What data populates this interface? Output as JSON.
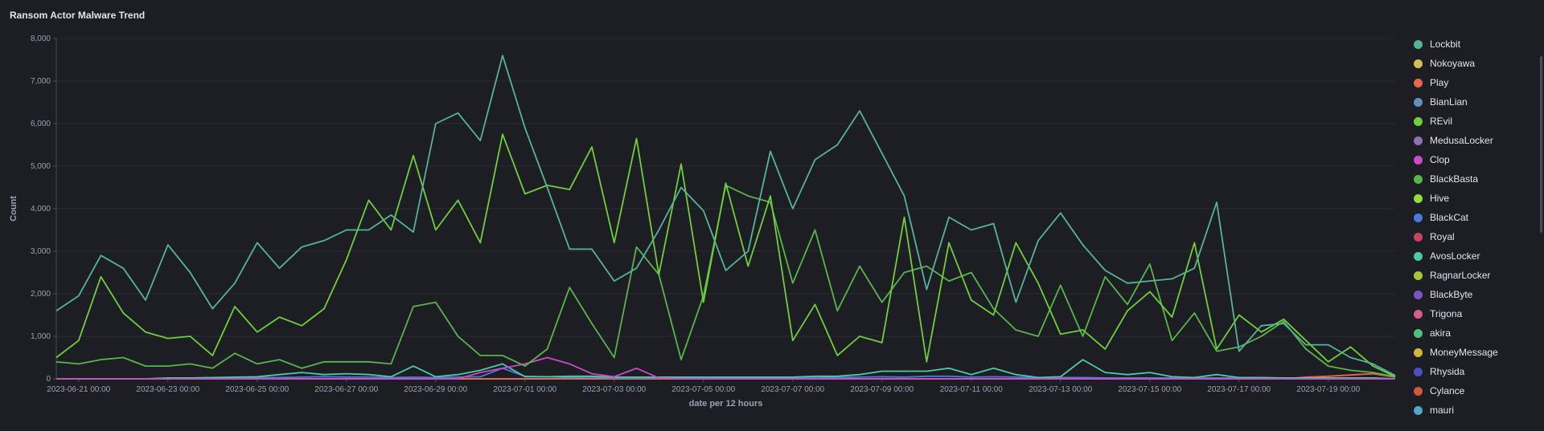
{
  "panel": {
    "title": "Ransom Actor Malware Trend"
  },
  "chart_data": {
    "type": "line",
    "title": "Ransom Actor Malware Trend",
    "xlabel": "date per 12 hours",
    "ylabel": "Count",
    "ylim": [
      0,
      8000
    ],
    "yticks": [
      "0",
      "1,000",
      "2,000",
      "3,000",
      "4,000",
      "5,000",
      "6,000",
      "7,000",
      "8,000"
    ],
    "xtick_labels": [
      "2023-06-21 00:00",
      "2023-06-23 00:00",
      "2023-06-25 00:00",
      "2023-06-27 00:00",
      "2023-06-29 00:00",
      "2023-07-01 00:00",
      "2023-07-03 00:00",
      "2023-07-05 00:00",
      "2023-07-07 00:00",
      "2023-07-09 00:00",
      "2023-07-11 00:00",
      "2023-07-13 00:00",
      "2023-07-15 00:00",
      "2023-07-17 00:00",
      "2023-07-19 00:00"
    ],
    "grid": true,
    "legend_position": "right",
    "series": [
      {
        "name": "Lockbit",
        "color": "#54b399",
        "values": [
          1600,
          1950,
          2900,
          2600,
          1850,
          3150,
          2500,
          1650,
          2250,
          3200,
          2600,
          3100,
          3250,
          3500,
          3500,
          3850,
          3450,
          6000,
          6250,
          5600,
          7600,
          5900,
          4500,
          3050,
          3050,
          2300,
          2600,
          3500,
          4500,
          3950,
          2550,
          3000,
          5350,
          4000,
          5150,
          5500,
          6300,
          5300,
          4300,
          2100,
          3800,
          3500,
          3650,
          1800,
          3250,
          3900,
          3150,
          2550,
          2250,
          2300,
          2350,
          2600,
          4150,
          650,
          1250,
          1300,
          800,
          800,
          500,
          350,
          80
        ]
      },
      {
        "name": "Nokoyawa",
        "color": "#d6bf57",
        "values": [
          0,
          0,
          0,
          0,
          0,
          0,
          0,
          0,
          0,
          0,
          0,
          0,
          0,
          0,
          0,
          0,
          0,
          0,
          0,
          0,
          0,
          0,
          0,
          0,
          0,
          0,
          0,
          0,
          0,
          0,
          0,
          0,
          0,
          0,
          0,
          0,
          0,
          0,
          0,
          0,
          0,
          0,
          0,
          0,
          0,
          0,
          0,
          0,
          0,
          0,
          0,
          0,
          0,
          0,
          0,
          0,
          0,
          0,
          0,
          0,
          0
        ]
      },
      {
        "name": "Play",
        "color": "#e7664c",
        "values": [
          0,
          0,
          0,
          0,
          0,
          0,
          0,
          0,
          0,
          0,
          0,
          0,
          0,
          0,
          0,
          0,
          0,
          0,
          0,
          0,
          0,
          0,
          0,
          0,
          0,
          0,
          0,
          0,
          0,
          0,
          0,
          0,
          0,
          0,
          0,
          0,
          0,
          0,
          0,
          0,
          0,
          0,
          0,
          0,
          0,
          0,
          0,
          0,
          0,
          0,
          0,
          0,
          0,
          0,
          0,
          0,
          40,
          60,
          90,
          120,
          40
        ]
      },
      {
        "name": "BianLian",
        "color": "#6092c0",
        "values": [
          0,
          0,
          0,
          0,
          0,
          0,
          0,
          0,
          0,
          0,
          0,
          0,
          0,
          0,
          0,
          0,
          0,
          0,
          0,
          0,
          0,
          0,
          0,
          0,
          0,
          0,
          0,
          0,
          0,
          0,
          0,
          0,
          0,
          0,
          0,
          0,
          0,
          0,
          0,
          0,
          0,
          0,
          0,
          0,
          0,
          0,
          0,
          0,
          0,
          0,
          0,
          0,
          0,
          0,
          0,
          0,
          0,
          0,
          0,
          0,
          0
        ]
      },
      {
        "name": "REvil",
        "color": "#6fcf3a",
        "values": [
          500,
          900,
          2400,
          1550,
          1100,
          950,
          1000,
          550,
          1700,
          1100,
          1450,
          1250,
          1650,
          2800,
          4200,
          3500,
          5250,
          3500,
          4200,
          3200,
          5750,
          4350,
          4550,
          4450,
          5450,
          3200,
          5650,
          2450,
          5050,
          1800,
          4600,
          2650,
          4300,
          900,
          1750,
          550,
          1000,
          850,
          3800,
          400,
          3200,
          1850,
          1500,
          3200,
          2250,
          1050,
          1150,
          700,
          1600,
          2050,
          1450,
          3200,
          700,
          1500,
          1100,
          1400,
          900,
          400,
          750,
          300,
          50
        ]
      },
      {
        "name": "MedusaLocker",
        "color": "#9170b8",
        "values": [
          0,
          0,
          0,
          0,
          0,
          0,
          0,
          0,
          0,
          0,
          0,
          0,
          0,
          0,
          0,
          0,
          0,
          0,
          0,
          0,
          0,
          0,
          0,
          0,
          0,
          0,
          0,
          0,
          0,
          0,
          0,
          0,
          0,
          0,
          0,
          0,
          0,
          0,
          0,
          0,
          0,
          0,
          0,
          0,
          0,
          0,
          0,
          0,
          0,
          0,
          0,
          0,
          0,
          0,
          0,
          0,
          0,
          0,
          0,
          0,
          0
        ]
      },
      {
        "name": "Clop",
        "color": "#ca4bc7",
        "values": [
          0,
          0,
          0,
          0,
          0,
          0,
          0,
          0,
          0,
          0,
          0,
          0,
          0,
          0,
          0,
          0,
          0,
          0,
          0,
          150,
          250,
          350,
          500,
          350,
          120,
          50,
          250,
          20,
          0,
          0,
          0,
          0,
          0,
          0,
          0,
          0,
          0,
          0,
          0,
          0,
          0,
          0,
          0,
          0,
          0,
          0,
          0,
          0,
          0,
          0,
          0,
          0,
          0,
          0,
          0,
          0,
          0,
          0,
          0,
          0,
          0
        ]
      },
      {
        "name": "BlackBasta",
        "color": "#58b54a",
        "values": [
          400,
          350,
          450,
          500,
          300,
          300,
          350,
          250,
          600,
          350,
          450,
          250,
          400,
          400,
          400,
          350,
          1700,
          1800,
          1000,
          550,
          550,
          300,
          700,
          2150,
          1300,
          500,
          3100,
          2450,
          450,
          1950,
          4550,
          4300,
          4150,
          2250,
          3500,
          1600,
          2650,
          1800,
          2500,
          2650,
          2300,
          2500,
          1650,
          1150,
          1000,
          2200,
          1000,
          2400,
          1750,
          2700,
          900,
          1550,
          650,
          750,
          1000,
          1350,
          700,
          300,
          200,
          150,
          50
        ]
      },
      {
        "name": "Hive",
        "color": "#8ddf3a",
        "values": [
          0,
          0,
          0,
          0,
          0,
          0,
          0,
          0,
          0,
          0,
          0,
          0,
          0,
          0,
          0,
          0,
          0,
          0,
          0,
          0,
          0,
          0,
          0,
          0,
          0,
          0,
          0,
          0,
          0,
          0,
          0,
          0,
          0,
          0,
          0,
          0,
          0,
          0,
          0,
          0,
          0,
          0,
          0,
          0,
          0,
          0,
          0,
          0,
          0,
          0,
          0,
          0,
          0,
          0,
          0,
          0,
          0,
          0,
          0,
          0,
          0
        ]
      },
      {
        "name": "BlackCat",
        "color": "#4a7adb",
        "values": [
          0,
          0,
          0,
          0,
          0,
          10,
          20,
          10,
          20,
          30,
          30,
          40,
          50,
          40,
          40,
          30,
          40,
          30,
          40,
          50,
          250,
          60,
          50,
          30,
          40,
          20,
          20,
          20,
          20,
          20,
          20,
          20,
          20,
          20,
          40,
          30,
          40,
          50,
          40,
          60,
          60,
          40,
          50,
          40,
          30,
          30,
          30,
          20,
          20,
          20,
          20,
          20,
          20,
          20,
          20,
          20,
          10,
          10,
          10,
          10,
          0
        ]
      },
      {
        "name": "Royal",
        "color": "#c9455e",
        "values": [
          0,
          0,
          0,
          0,
          0,
          0,
          0,
          0,
          0,
          0,
          0,
          0,
          0,
          0,
          0,
          0,
          0,
          0,
          0,
          0,
          0,
          0,
          0,
          0,
          0,
          0,
          0,
          0,
          0,
          0,
          0,
          0,
          0,
          0,
          0,
          0,
          0,
          0,
          0,
          0,
          0,
          0,
          0,
          0,
          0,
          0,
          0,
          0,
          0,
          0,
          0,
          0,
          0,
          0,
          0,
          0,
          0,
          0,
          0,
          0,
          0
        ]
      },
      {
        "name": "AvosLocker",
        "color": "#4cc9a6",
        "values": [
          0,
          0,
          0,
          0,
          0,
          20,
          20,
          30,
          40,
          50,
          100,
          150,
          100,
          120,
          100,
          50,
          300,
          50,
          100,
          200,
          350,
          50,
          50,
          60,
          60,
          40,
          40,
          40,
          40,
          40,
          40,
          40,
          40,
          40,
          60,
          60,
          100,
          180,
          180,
          180,
          250,
          100,
          250,
          100,
          30,
          50,
          450,
          150,
          100,
          150,
          50,
          30,
          100,
          30,
          30,
          20,
          20,
          20,
          20,
          20,
          0
        ]
      },
      {
        "name": "RagnarLocker",
        "color": "#a5c83b",
        "values": [
          0,
          0,
          0,
          0,
          0,
          0,
          0,
          0,
          0,
          0,
          0,
          0,
          0,
          0,
          0,
          0,
          0,
          0,
          0,
          0,
          0,
          0,
          0,
          0,
          0,
          0,
          0,
          0,
          0,
          0,
          0,
          0,
          0,
          0,
          0,
          0,
          0,
          0,
          0,
          0,
          0,
          0,
          0,
          0,
          0,
          0,
          0,
          0,
          0,
          0,
          0,
          0,
          0,
          0,
          0,
          0,
          0,
          0,
          0,
          0,
          0
        ]
      },
      {
        "name": "BlackByte",
        "color": "#7a53c9",
        "values": [
          0,
          0,
          0,
          0,
          0,
          0,
          0,
          0,
          0,
          0,
          0,
          0,
          0,
          0,
          0,
          0,
          0,
          0,
          0,
          0,
          0,
          0,
          0,
          0,
          0,
          0,
          0,
          0,
          0,
          0,
          0,
          0,
          0,
          0,
          0,
          0,
          0,
          0,
          0,
          0,
          0,
          0,
          0,
          0,
          0,
          0,
          0,
          0,
          0,
          0,
          0,
          0,
          0,
          0,
          0,
          0,
          0,
          0,
          0,
          0,
          0
        ]
      },
      {
        "name": "Trigona",
        "color": "#d36086",
        "values": [
          0,
          0,
          0,
          0,
          0,
          0,
          0,
          0,
          0,
          0,
          0,
          0,
          0,
          0,
          0,
          0,
          0,
          0,
          0,
          0,
          0,
          0,
          0,
          0,
          0,
          0,
          0,
          0,
          0,
          0,
          0,
          0,
          0,
          0,
          0,
          0,
          0,
          0,
          0,
          0,
          0,
          0,
          0,
          0,
          0,
          0,
          0,
          0,
          0,
          0,
          0,
          0,
          0,
          0,
          0,
          0,
          0,
          0,
          0,
          0,
          0
        ]
      },
      {
        "name": "akira",
        "color": "#4fc07e",
        "values": [
          0,
          0,
          0,
          0,
          0,
          0,
          0,
          0,
          0,
          0,
          0,
          0,
          0,
          0,
          0,
          0,
          0,
          0,
          0,
          0,
          0,
          0,
          0,
          0,
          0,
          0,
          0,
          0,
          0,
          0,
          0,
          0,
          0,
          0,
          0,
          0,
          0,
          0,
          0,
          0,
          0,
          0,
          0,
          0,
          0,
          0,
          0,
          0,
          0,
          0,
          0,
          0,
          0,
          0,
          0,
          0,
          0,
          0,
          0,
          0,
          0
        ]
      },
      {
        "name": "MoneyMessage",
        "color": "#d2b73a",
        "values": [
          0,
          0,
          0,
          0,
          0,
          0,
          0,
          0,
          0,
          0,
          0,
          0,
          0,
          0,
          0,
          0,
          0,
          0,
          0,
          0,
          0,
          0,
          0,
          0,
          0,
          0,
          0,
          0,
          0,
          0,
          0,
          0,
          0,
          0,
          0,
          0,
          0,
          0,
          0,
          0,
          0,
          0,
          0,
          0,
          0,
          0,
          0,
          0,
          0,
          0,
          0,
          0,
          0,
          0,
          0,
          0,
          0,
          0,
          0,
          0,
          0
        ]
      },
      {
        "name": "Rhysida",
        "color": "#4c4fc4",
        "values": [
          0,
          0,
          0,
          0,
          0,
          0,
          0,
          0,
          0,
          0,
          0,
          0,
          0,
          0,
          0,
          0,
          0,
          0,
          0,
          0,
          0,
          0,
          0,
          0,
          0,
          0,
          0,
          0,
          0,
          0,
          0,
          0,
          0,
          0,
          0,
          0,
          0,
          0,
          0,
          0,
          0,
          0,
          0,
          0,
          0,
          0,
          0,
          0,
          0,
          0,
          0,
          0,
          0,
          0,
          0,
          0,
          0,
          0,
          0,
          0,
          0
        ]
      },
      {
        "name": "Cylance",
        "color": "#d05a3e",
        "values": [
          0,
          0,
          0,
          0,
          0,
          0,
          0,
          0,
          0,
          0,
          0,
          0,
          0,
          0,
          0,
          0,
          0,
          0,
          0,
          0,
          0,
          0,
          0,
          0,
          0,
          0,
          0,
          0,
          0,
          0,
          0,
          0,
          0,
          0,
          0,
          0,
          0,
          0,
          0,
          0,
          0,
          0,
          0,
          0,
          0,
          0,
          0,
          0,
          0,
          0,
          0,
          0,
          0,
          0,
          0,
          0,
          0,
          0,
          0,
          0,
          0
        ]
      },
      {
        "name": "mauri",
        "color": "#4fa7c9",
        "values": [
          0,
          0,
          0,
          0,
          0,
          0,
          0,
          0,
          0,
          0,
          0,
          0,
          0,
          0,
          0,
          0,
          0,
          0,
          0,
          0,
          0,
          0,
          0,
          0,
          0,
          0,
          0,
          0,
          0,
          0,
          0,
          0,
          0,
          0,
          0,
          0,
          0,
          0,
          0,
          0,
          0,
          0,
          0,
          0,
          0,
          0,
          0,
          0,
          0,
          0,
          0,
          0,
          0,
          0,
          0,
          0,
          0,
          0,
          0,
          0,
          0
        ]
      }
    ]
  }
}
